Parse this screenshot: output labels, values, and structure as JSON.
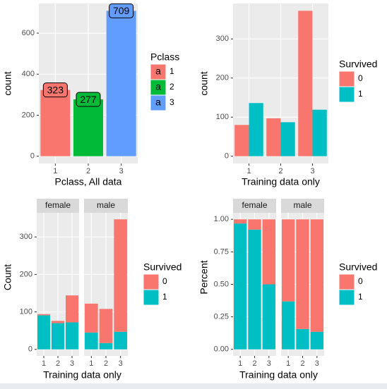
{
  "chart_data": [
    {
      "type": "bar",
      "xlabel": "Pclass, All data",
      "ylabel": "count",
      "categories": [
        "1",
        "2",
        "3"
      ],
      "values": [
        323,
        277,
        709
      ],
      "colors": [
        "#F8766D",
        "#00BA38",
        "#619CFF"
      ],
      "legend_title": "Pclass",
      "legend_key_glyph": "a",
      "ylim": [
        -35.45,
        744.45
      ],
      "yticks": [
        0,
        200,
        400,
        600
      ],
      "grid": true
    },
    {
      "type": "grouped_bar",
      "xlabel": "Training data only",
      "ylabel": "count",
      "categories": [
        "1",
        "2",
        "3"
      ],
      "series": [
        {
          "name": "0",
          "color": "#F8766D",
          "values": [
            80,
            97,
            372
          ]
        },
        {
          "name": "1",
          "color": "#00BFC4",
          "values": [
            136,
            87,
            119
          ]
        }
      ],
      "legend_title": "Survived",
      "ylim": [
        -18.6,
        390.6
      ],
      "yticks": [
        0,
        100,
        200,
        300
      ],
      "grid": true
    },
    {
      "type": "stacked_bar",
      "xlabel": "Training data only",
      "ylabel": "Count",
      "categories": [
        "1",
        "2",
        "3"
      ],
      "facets": [
        {
          "name": "female",
          "series": [
            {
              "name": "0",
              "color": "#F8766D",
              "values": [
                3,
                6,
                72
              ]
            },
            {
              "name": "1",
              "color": "#00BFC4",
              "values": [
                91,
                70,
                72
              ]
            }
          ]
        },
        {
          "name": "male",
          "series": [
            {
              "name": "0",
              "color": "#F8766D",
              "values": [
                77,
                91,
                300
              ]
            },
            {
              "name": "1",
              "color": "#00BFC4",
              "values": [
                45,
                17,
                47
              ]
            }
          ]
        }
      ],
      "legend_title": "Survived",
      "ylim": [
        -17.35,
        364.35
      ],
      "yticks": [
        0,
        100,
        200,
        300
      ],
      "grid": true
    },
    {
      "type": "stacked_bar",
      "xlabel": "Training data only",
      "ylabel": "Percent",
      "categories": [
        "1",
        "2",
        "3"
      ],
      "facets": [
        {
          "name": "female",
          "series": [
            {
              "name": "0",
              "color": "#F8766D",
              "values": [
                0.032,
                0.079,
                0.5
              ]
            },
            {
              "name": "1",
              "color": "#00BFC4",
              "values": [
                0.968,
                0.921,
                0.5
              ]
            }
          ]
        },
        {
          "name": "male",
          "series": [
            {
              "name": "0",
              "color": "#F8766D",
              "values": [
                0.631,
                0.843,
                0.865
              ]
            },
            {
              "name": "1",
              "color": "#00BFC4",
              "values": [
                0.369,
                0.157,
                0.135
              ]
            }
          ]
        }
      ],
      "legend_title": "Survived",
      "ylim": [
        -0.05,
        1.05
      ],
      "yticks": [
        {
          "value": 0,
          "label": "0.00"
        },
        {
          "value": 0.25,
          "label": "0.25"
        },
        {
          "value": 0.5,
          "label": "0.50"
        },
        {
          "value": 0.75,
          "label": "0.75"
        },
        {
          "value": 1,
          "label": "1.00"
        }
      ],
      "grid": true
    }
  ]
}
